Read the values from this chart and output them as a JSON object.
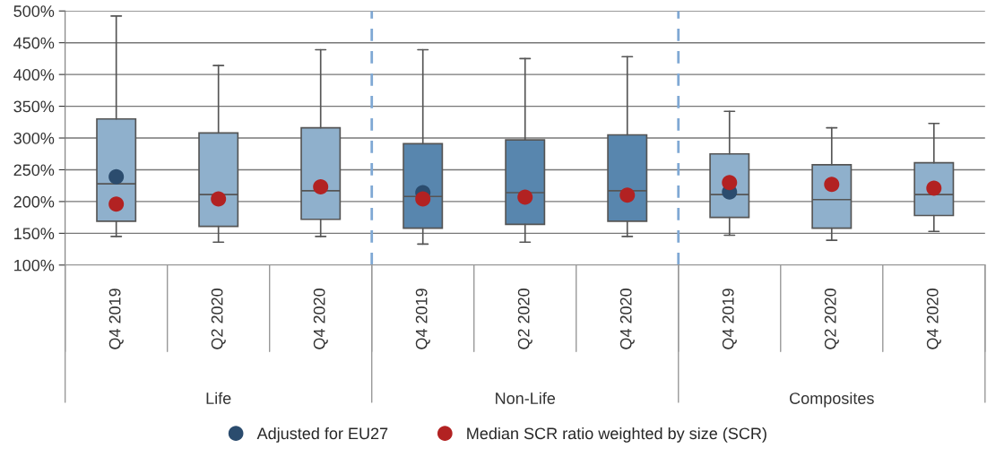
{
  "chart_data": {
    "type": "box",
    "categories": [
      "Q4 2019",
      "Q2 2020",
      "Q4 2020",
      "Q4 2019",
      "Q2 2020",
      "Q4 2020",
      "Q4 2019",
      "Q2 2020",
      "Q4 2020"
    ],
    "boxes": [
      {
        "low": 145,
        "q1": 169,
        "median": 228,
        "q3": 330,
        "high": 492
      },
      {
        "low": 136,
        "q1": 161,
        "median": 211,
        "q3": 308,
        "high": 414
      },
      {
        "low": 145,
        "q1": 172,
        "median": 217,
        "q3": 316,
        "high": 439
      },
      {
        "low": 133,
        "q1": 158,
        "median": 208,
        "q3": 291,
        "high": 439
      },
      {
        "low": 136,
        "q1": 164,
        "median": 214,
        "q3": 297,
        "high": 425
      },
      {
        "low": 145,
        "q1": 169,
        "median": 217,
        "q3": 305,
        "high": 428
      },
      {
        "low": 147,
        "q1": 175,
        "median": 211,
        "q3": 275,
        "high": 342
      },
      {
        "low": 139,
        "q1": 158,
        "median": 203,
        "q3": 258,
        "high": 316
      },
      {
        "low": 153,
        "q1": 178,
        "median": 211,
        "q3": 261,
        "high": 323
      }
    ],
    "colors": [
      "#8fb0cc",
      "#8fb0cc",
      "#8fb0cc",
      "#5886ae",
      "#5886ae",
      "#5886ae",
      "#8fb0cc",
      "#8fb0cc",
      "#8fb0cc"
    ],
    "series": [
      {
        "type": "scatter",
        "name": "Adjusted for EU27",
        "color": "#2b4c6e",
        "values": [
          239,
          null,
          null,
          214,
          null,
          null,
          215,
          null,
          null
        ]
      },
      {
        "type": "scatter",
        "name": "Median SCR ratio weighted by size (SCR)",
        "color": "#b22222",
        "values": [
          196,
          204,
          223,
          204,
          207,
          210,
          230,
          227,
          221
        ]
      }
    ],
    "annotations": [
      "Life",
      "Non-Life",
      "Composites"
    ],
    "ylim": [
      100,
      500
    ],
    "yticks": [
      {
        "value": 100,
        "label": "100%"
      },
      {
        "value": 150,
        "label": "150%"
      },
      {
        "value": 200,
        "label": "200%"
      },
      {
        "value": 250,
        "label": "250%"
      },
      {
        "value": 300,
        "label": "300%"
      },
      {
        "value": 350,
        "label": "350%"
      },
      {
        "value": 400,
        "label": "400%"
      },
      {
        "value": 450,
        "label": "450%"
      },
      {
        "value": 500,
        "label": "500%"
      }
    ],
    "grid": "y",
    "legend": "bottom"
  }
}
